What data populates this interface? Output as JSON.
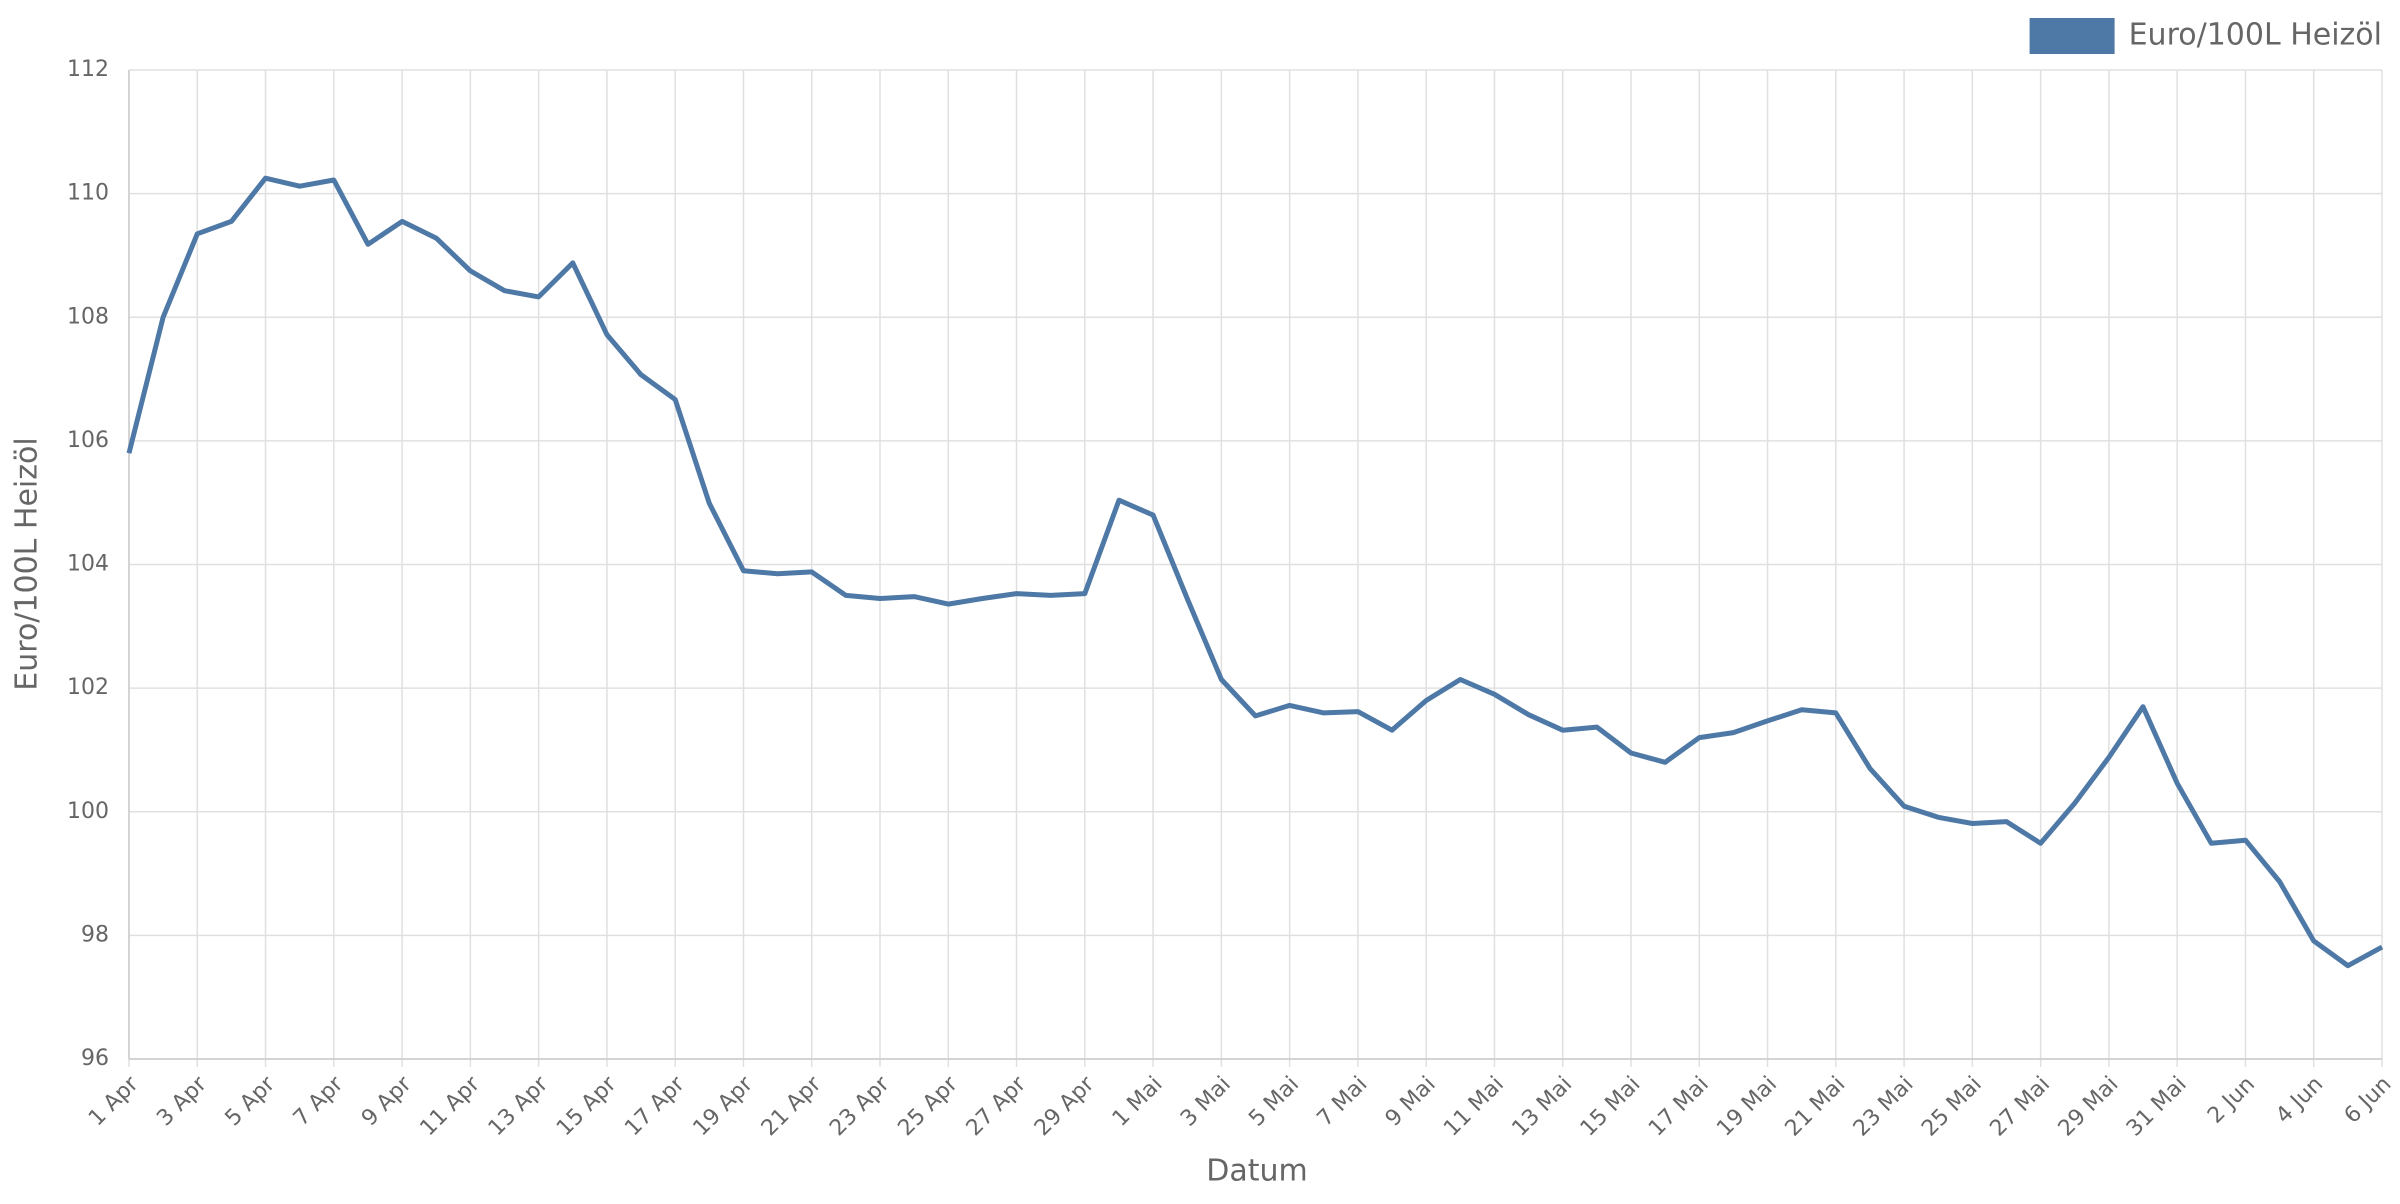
{
  "chart_data": {
    "type": "line",
    "x_label": "Datum",
    "y_label": "Euro/100L Heizöl",
    "categories": [
      "1 Apr",
      null,
      "3 Apr",
      null,
      "5 Apr",
      null,
      "7 Apr",
      null,
      "9 Apr",
      null,
      "11 Apr",
      null,
      "13 Apr",
      null,
      "15 Apr",
      null,
      "17 Apr",
      null,
      "19 Apr",
      null,
      "21 Apr",
      null,
      "23 Apr",
      null,
      "25 Apr",
      null,
      "27 Apr",
      null,
      "29 Apr",
      null,
      "1 Mai",
      null,
      "3 Mai",
      null,
      "5 Mai",
      null,
      "7 Mai",
      null,
      "9 Mai",
      null,
      "11 Mai",
      null,
      "13 Mai",
      null,
      "15 Mai",
      null,
      "17 Mai",
      null,
      "19 Mai",
      null,
      "21 Mai",
      null,
      "23 Mai",
      null,
      "25 Mai",
      null,
      "27 Mai",
      null,
      "29 Mai",
      null,
      "31 Mai",
      null,
      "2 Jun",
      null,
      "4 Jun",
      null,
      "6 Jun"
    ],
    "series": [
      {
        "name": "Euro/100L Heizöl",
        "color": "#4e79a7",
        "values": [
          105.8,
          108.0,
          109.35,
          109.55,
          110.25,
          110.12,
          110.22,
          109.18,
          109.55,
          109.28,
          108.75,
          108.43,
          108.33,
          108.88,
          107.72,
          107.07,
          106.67,
          104.99,
          103.9,
          103.85,
          103.88,
          103.5,
          103.45,
          103.48,
          103.36,
          103.45,
          103.53,
          103.5,
          103.53,
          105.04,
          104.8,
          103.45,
          102.14,
          101.55,
          101.72,
          101.6,
          101.62,
          101.32,
          101.8,
          102.14,
          101.9,
          101.57,
          101.32,
          101.37,
          100.95,
          100.8,
          101.2,
          101.28,
          101.47,
          101.65,
          101.6,
          100.7,
          100.09,
          99.91,
          99.81,
          99.84,
          99.49,
          100.14,
          100.88,
          101.7,
          100.46,
          99.49,
          99.54,
          98.87,
          97.91,
          97.51,
          97.81
        ]
      }
    ],
    "ylim": [
      96,
      112
    ],
    "yticks": [
      96,
      98,
      100,
      102,
      104,
      106,
      108,
      110,
      112
    ],
    "grid": true,
    "legend": "top-right"
  }
}
